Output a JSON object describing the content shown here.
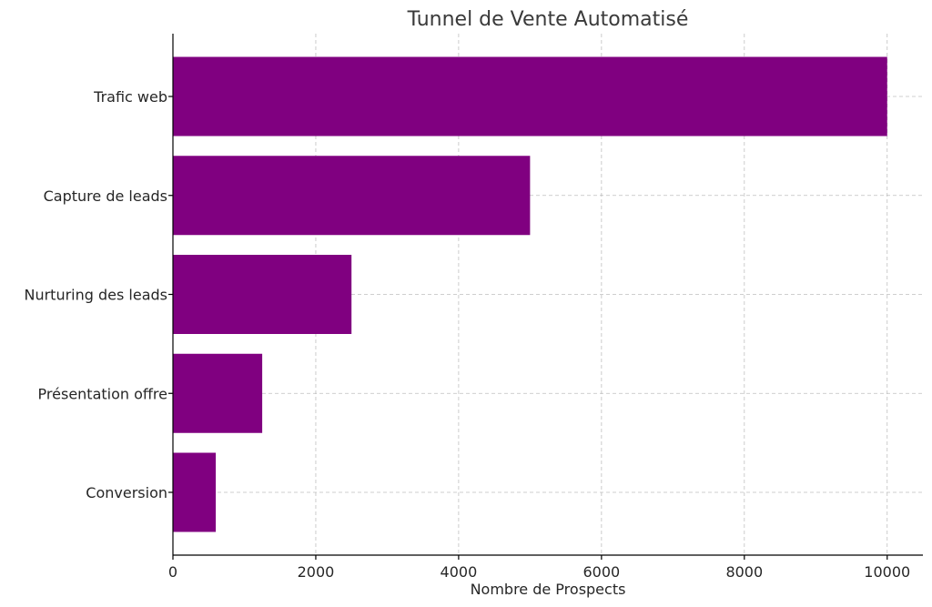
{
  "chart_data": {
    "type": "bar",
    "orientation": "horizontal",
    "title": "Tunnel de Vente Automatisé",
    "xlabel": "Nombre de Prospects",
    "ylabel": "",
    "categories": [
      "Trafic web",
      "Capture de leads",
      "Nurturing des leads",
      "Présentation offre",
      "Conversion"
    ],
    "values": [
      10000,
      5000,
      2500,
      1250,
      600
    ],
    "xlim": [
      0,
      10500
    ],
    "xticks": [
      "0",
      "2000",
      "4000",
      "6000",
      "8000",
      "10000"
    ],
    "grid": true,
    "bar_color": "#800080"
  }
}
